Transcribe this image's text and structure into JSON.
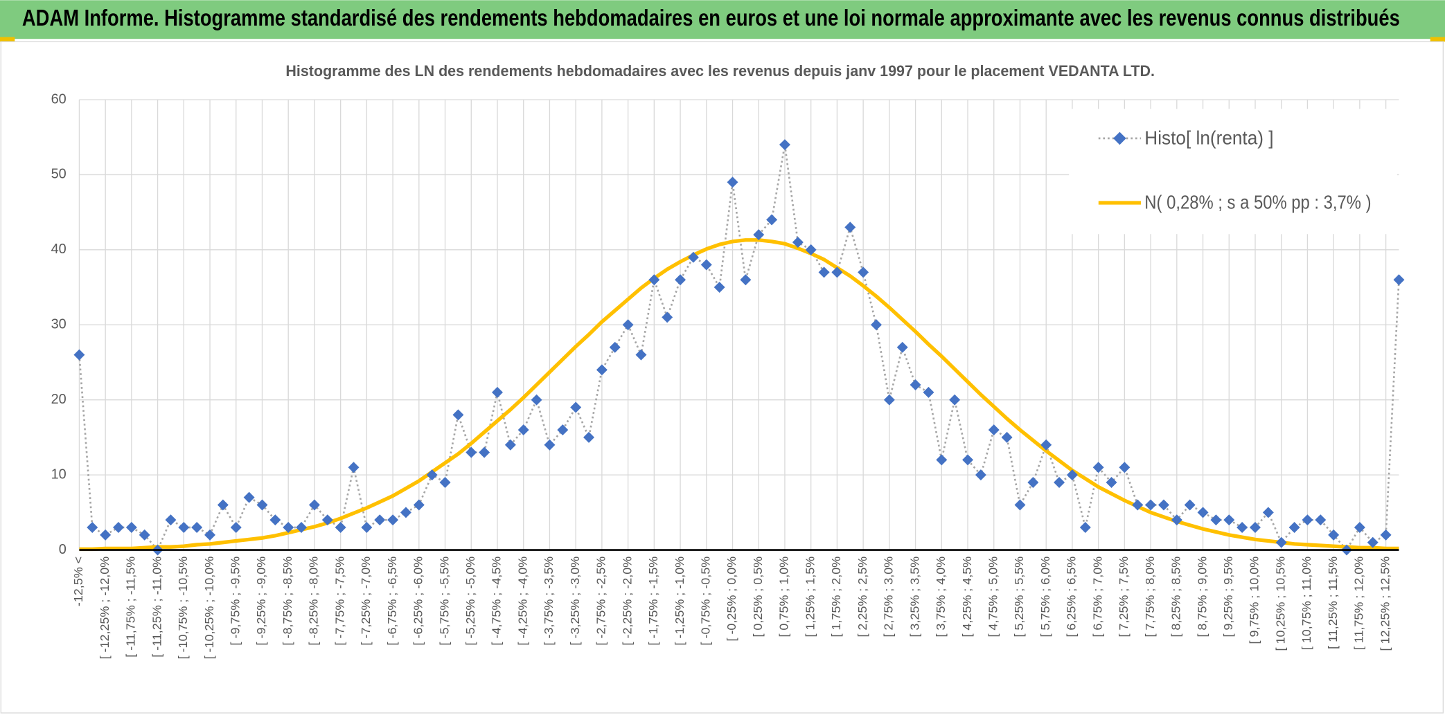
{
  "header": {
    "title": "ADAM Informe. Histogramme standardisé des rendements hebdomadaires en euros et une loi normale approximante avec les revenus connus distribués"
  },
  "chart_data": {
    "type": "line",
    "title": "Histogramme des LN des rendements hebdomadaires avec les revenus depuis janv 1997 pour le placement VEDANTA LTD.",
    "categories": [
      "-12,5% <",
      null,
      "[ -12,25% ; -12,0%",
      null,
      "[ -11,75% ; -11,5%",
      null,
      "[ -11,25% ; -11,0%",
      null,
      "[ -10,75% ; -10,5%",
      null,
      "[ -10,25% ; -10,0%",
      null,
      "[ -9,75% ; -9,5%",
      null,
      "[ -9,25% ; -9,0%",
      null,
      "[ -8,75% ; -8,5%",
      null,
      "[ -8,25% ; -8,0%",
      null,
      "[ -7,75% ; -7,5%",
      null,
      "[ -7,25% ; -7,0%",
      null,
      "[ -6,75% ; -6,5%",
      null,
      "[ -6,25% ; -6,0%",
      null,
      "[ -5,75% ; -5,5%",
      null,
      "[ -5,25% ; -5,0%",
      null,
      "[ -4,75% ; -4,5%",
      null,
      "[ -4,25% ; -4,0%",
      null,
      "[ -3,75% ; -3,5%",
      null,
      "[ -3,25% ; -3,0%",
      null,
      "[ -2,75% ; -2,5%",
      null,
      "[ -2,25% ; -2,0%",
      null,
      "[ -1,75% ; -1,5%",
      null,
      "[ -1,25% ; -1,0%",
      null,
      "[ -0,75% ; -0,5%",
      null,
      "[ -0,25% ; 0,0%",
      null,
      "[ 0,25% ; 0,5%",
      null,
      "[ 0,75% ; 1,0%",
      null,
      "[ 1,25% ; 1,5%",
      null,
      "[ 1,75% ; 2,0%",
      null,
      "[ 2,25% ; 2,5%",
      null,
      "[ 2,75% ; 3,0%",
      null,
      "[ 3,25% ; 3,5%",
      null,
      "[ 3,75% ; 4,0%",
      null,
      "[ 4,25% ; 4,5%",
      null,
      "[ 4,75% ; 5,0%",
      null,
      "[ 5,25% ; 5,5%",
      null,
      "[ 5,75% ; 6,0%",
      null,
      "[ 6,25% ; 6,5%",
      null,
      "[ 6,75% ; 7,0%",
      null,
      "[ 7,25% ; 7,5%",
      null,
      "[ 7,75% ; 8,0%",
      null,
      "[ 8,25% ; 8,5%",
      null,
      "[ 8,75% ; 9,0%",
      null,
      "[ 9,25% ; 9,5%",
      null,
      "[ 9,75% ; 10,0%",
      null,
      "[ 10,25% ; 10,5%",
      null,
      "[ 10,75% ; 11,0%",
      null,
      "[ 11,25% ; 11,5%",
      null,
      "[ 11,75% ; 12,0%",
      null,
      "[ 12,25% ; 12,5%",
      null
    ],
    "series": [
      {
        "name": "Histo[ ln(renta) ]",
        "color": "#4472c4",
        "line_color": "#a6a6a6",
        "values": [
          26,
          3,
          2,
          3,
          3,
          2,
          0,
          4,
          3,
          3,
          2,
          6,
          3,
          7,
          6,
          4,
          3,
          3,
          6,
          4,
          3,
          11,
          3,
          4,
          4,
          5,
          6,
          10,
          9,
          18,
          13,
          13,
          21,
          14,
          16,
          20,
          14,
          16,
          19,
          15,
          24,
          27,
          30,
          26,
          36,
          31,
          36,
          39,
          38,
          35,
          49,
          36,
          42,
          44,
          54,
          41,
          40,
          37,
          37,
          43,
          37,
          30,
          20,
          27,
          22,
          21,
          12,
          20,
          12,
          10,
          16,
          15,
          6,
          9,
          14,
          9,
          10,
          3,
          11,
          9,
          11,
          6,
          6,
          6,
          4,
          6,
          5,
          4,
          4,
          3,
          3,
          5,
          1,
          3,
          4,
          4,
          2,
          0,
          3,
          1,
          2,
          36
        ]
      },
      {
        "name": "N( 0,28% ; s a 50% pp : 3,7% )",
        "color": "#ffc000",
        "values": [
          0.1,
          0.1,
          0.2,
          0.2,
          0.2,
          0.3,
          0.4,
          0.4,
          0.5,
          0.7,
          0.8,
          1.0,
          1.2,
          1.4,
          1.6,
          1.9,
          2.3,
          2.7,
          3.1,
          3.6,
          4.2,
          4.9,
          5.6,
          6.4,
          7.2,
          8.2,
          9.2,
          10.4,
          11.6,
          12.8,
          14.2,
          15.7,
          17.2,
          18.7,
          20.3,
          22.0,
          23.7,
          25.4,
          27.1,
          28.7,
          30.4,
          31.9,
          33.4,
          34.9,
          36.2,
          37.4,
          38.4,
          39.3,
          40.1,
          40.7,
          41.1,
          41.3,
          41.3,
          41.1,
          40.8,
          40.2,
          39.5,
          38.7,
          37.6,
          36.5,
          35.2,
          33.8,
          32.3,
          30.7,
          29.1,
          27.4,
          25.8,
          24.1,
          22.4,
          20.7,
          19.1,
          17.5,
          16.0,
          14.6,
          13.2,
          11.9,
          10.6,
          9.5,
          8.4,
          7.5,
          6.6,
          5.8,
          5.0,
          4.4,
          3.8,
          3.3,
          2.8,
          2.4,
          2.0,
          1.7,
          1.4,
          1.2,
          1.0,
          0.8,
          0.7,
          0.6,
          0.5,
          0.4,
          0.3,
          0.3,
          0.2,
          0.2
        ]
      }
    ],
    "ylim": [
      0,
      60
    ],
    "yticks": [
      0,
      10,
      20,
      30,
      40,
      50,
      60
    ],
    "grid": true,
    "legend": "top-right"
  }
}
